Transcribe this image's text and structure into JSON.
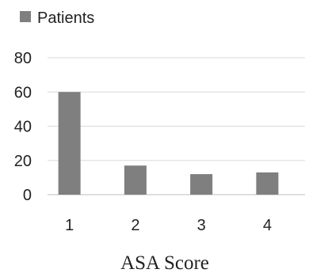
{
  "chart_data": {
    "type": "bar",
    "categories": [
      "1",
      "2",
      "3",
      "4"
    ],
    "series": [
      {
        "name": "Patients",
        "values": [
          60,
          17,
          12,
          13
        ]
      }
    ],
    "xlabel": "ASA Score",
    "ylabel": "",
    "ylim": [
      0,
      80
    ],
    "yticks": [
      0,
      20,
      40,
      60,
      80
    ],
    "grid": true,
    "legend": "top-left",
    "colors": {
      "bar": "#7f7f7f",
      "grid": "#d9d9d9",
      "axis": "#bfbfbf"
    }
  }
}
